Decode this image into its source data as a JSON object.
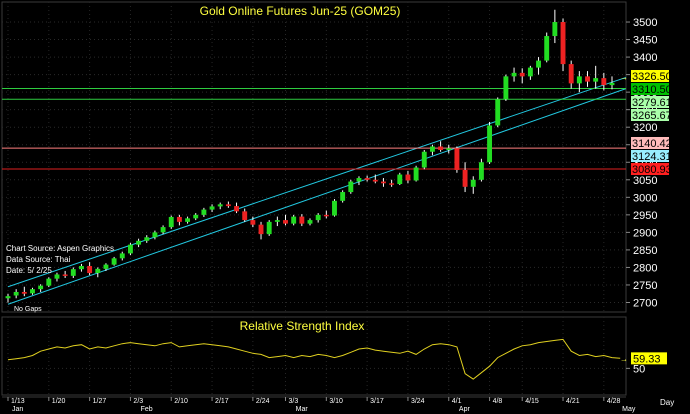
{
  "chart_data": [
    {
      "type": "candlestick",
      "title": "Gold Online Futures Jun-25 (GOM25)",
      "notes": [
        "Chart Source: Aspen Graphics",
        "Data Source: Thai",
        "Date:   5/ 2/25"
      ],
      "footnote": "No Gaps",
      "ylim": [
        2690,
        3540
      ],
      "yticks": [
        2700,
        2750,
        2800,
        2850,
        2900,
        2950,
        3000,
        3050,
        3100,
        3150,
        3200,
        3250,
        3300,
        3350,
        3400,
        3450,
        3500
      ],
      "x_labels": [
        "1/13",
        "1/20",
        "1/27",
        "2/3",
        "2/10",
        "2/17",
        "2/24",
        "3/3",
        "3/10",
        "3/17",
        "3/24",
        "4/1",
        "4/8",
        "4/15",
        "4/21",
        "4/28"
      ],
      "month_labels": [
        "Jan",
        "Feb",
        "Mar",
        "Apr",
        "May"
      ],
      "right_axis_label": "Day",
      "grid": true,
      "candles": [
        {
          "o": 2712,
          "h": 2725,
          "l": 2700,
          "c": 2718
        },
        {
          "o": 2720,
          "h": 2738,
          "l": 2712,
          "c": 2730
        },
        {
          "o": 2730,
          "h": 2745,
          "l": 2718,
          "c": 2725
        },
        {
          "o": 2726,
          "h": 2742,
          "l": 2722,
          "c": 2738
        },
        {
          "o": 2738,
          "h": 2752,
          "l": 2730,
          "c": 2748
        },
        {
          "o": 2748,
          "h": 2772,
          "l": 2744,
          "c": 2768
        },
        {
          "o": 2768,
          "h": 2785,
          "l": 2760,
          "c": 2780
        },
        {
          "o": 2780,
          "h": 2790,
          "l": 2770,
          "c": 2776
        },
        {
          "o": 2776,
          "h": 2800,
          "l": 2770,
          "c": 2795
        },
        {
          "o": 2795,
          "h": 2810,
          "l": 2788,
          "c": 2804
        },
        {
          "o": 2804,
          "h": 2815,
          "l": 2778,
          "c": 2784
        },
        {
          "o": 2784,
          "h": 2800,
          "l": 2772,
          "c": 2796
        },
        {
          "o": 2796,
          "h": 2812,
          "l": 2790,
          "c": 2808
        },
        {
          "o": 2808,
          "h": 2830,
          "l": 2805,
          "c": 2826
        },
        {
          "o": 2826,
          "h": 2845,
          "l": 2820,
          "c": 2840
        },
        {
          "o": 2840,
          "h": 2870,
          "l": 2835,
          "c": 2865
        },
        {
          "o": 2865,
          "h": 2882,
          "l": 2858,
          "c": 2876
        },
        {
          "o": 2876,
          "h": 2892,
          "l": 2870,
          "c": 2886
        },
        {
          "o": 2886,
          "h": 2905,
          "l": 2880,
          "c": 2900
        },
        {
          "o": 2900,
          "h": 2920,
          "l": 2895,
          "c": 2915
        },
        {
          "o": 2915,
          "h": 2948,
          "l": 2910,
          "c": 2944
        },
        {
          "o": 2944,
          "h": 2950,
          "l": 2920,
          "c": 2930
        },
        {
          "o": 2930,
          "h": 2945,
          "l": 2925,
          "c": 2940
        },
        {
          "o": 2940,
          "h": 2955,
          "l": 2935,
          "c": 2950
        },
        {
          "o": 2950,
          "h": 2970,
          "l": 2944,
          "c": 2965
        },
        {
          "o": 2965,
          "h": 2980,
          "l": 2958,
          "c": 2974
        },
        {
          "o": 2974,
          "h": 2985,
          "l": 2966,
          "c": 2980
        },
        {
          "o": 2980,
          "h": 2988,
          "l": 2970,
          "c": 2975
        },
        {
          "o": 2975,
          "h": 2985,
          "l": 2955,
          "c": 2960
        },
        {
          "o": 2960,
          "h": 2968,
          "l": 2930,
          "c": 2935
        },
        {
          "o": 2935,
          "h": 2945,
          "l": 2915,
          "c": 2922
        },
        {
          "o": 2922,
          "h": 2930,
          "l": 2880,
          "c": 2895
        },
        {
          "o": 2895,
          "h": 2935,
          "l": 2890,
          "c": 2930
        },
        {
          "o": 2930,
          "h": 2945,
          "l": 2918,
          "c": 2935
        },
        {
          "o": 2935,
          "h": 2950,
          "l": 2920,
          "c": 2925
        },
        {
          "o": 2925,
          "h": 2950,
          "l": 2920,
          "c": 2945
        },
        {
          "o": 2945,
          "h": 2952,
          "l": 2918,
          "c": 2925
        },
        {
          "o": 2925,
          "h": 2940,
          "l": 2920,
          "c": 2935
        },
        {
          "o": 2935,
          "h": 2955,
          "l": 2928,
          "c": 2950
        },
        {
          "o": 2950,
          "h": 2962,
          "l": 2940,
          "c": 2948
        },
        {
          "o": 2948,
          "h": 2995,
          "l": 2945,
          "c": 2990
        },
        {
          "o": 2990,
          "h": 3020,
          "l": 2985,
          "c": 3015
        },
        {
          "o": 3015,
          "h": 3050,
          "l": 3010,
          "c": 3045
        },
        {
          "o": 3045,
          "h": 3060,
          "l": 3035,
          "c": 3055
        },
        {
          "o": 3055,
          "h": 3062,
          "l": 3045,
          "c": 3050
        },
        {
          "o": 3050,
          "h": 3065,
          "l": 3040,
          "c": 3045
        },
        {
          "o": 3045,
          "h": 3055,
          "l": 3030,
          "c": 3040
        },
        {
          "o": 3040,
          "h": 3050,
          "l": 3030,
          "c": 3038
        },
        {
          "o": 3038,
          "h": 3070,
          "l": 3035,
          "c": 3065
        },
        {
          "o": 3065,
          "h": 3075,
          "l": 3040,
          "c": 3048
        },
        {
          "o": 3048,
          "h": 3090,
          "l": 3045,
          "c": 3085
        },
        {
          "o": 3085,
          "h": 3135,
          "l": 3080,
          "c": 3130
        },
        {
          "o": 3130,
          "h": 3150,
          "l": 3120,
          "c": 3145
        },
        {
          "o": 3145,
          "h": 3160,
          "l": 3130,
          "c": 3135
        },
        {
          "o": 3135,
          "h": 3150,
          "l": 3125,
          "c": 3140
        },
        {
          "o": 3140,
          "h": 3145,
          "l": 3070,
          "c": 3078
        },
        {
          "o": 3078,
          "h": 3100,
          "l": 3015,
          "c": 3030
        },
        {
          "o": 3030,
          "h": 3060,
          "l": 3010,
          "c": 3050
        },
        {
          "o": 3050,
          "h": 3110,
          "l": 3045,
          "c": 3100
        },
        {
          "o": 3100,
          "h": 3215,
          "l": 3095,
          "c": 3205
        },
        {
          "o": 3205,
          "h": 3285,
          "l": 3200,
          "c": 3280
        },
        {
          "o": 3280,
          "h": 3350,
          "l": 3275,
          "c": 3345
        },
        {
          "o": 3345,
          "h": 3370,
          "l": 3330,
          "c": 3355
        },
        {
          "o": 3355,
          "h": 3368,
          "l": 3325,
          "c": 3345
        },
        {
          "o": 3345,
          "h": 3375,
          "l": 3335,
          "c": 3370
        },
        {
          "o": 3370,
          "h": 3400,
          "l": 3350,
          "c": 3390
        },
        {
          "o": 3390,
          "h": 3470,
          "l": 3385,
          "c": 3460
        },
        {
          "o": 3460,
          "h": 3535,
          "l": 3440,
          "c": 3500
        },
        {
          "o": 3500,
          "h": 3510,
          "l": 3360,
          "c": 3380
        },
        {
          "o": 3380,
          "h": 3390,
          "l": 3310,
          "c": 3325
        },
        {
          "o": 3325,
          "h": 3360,
          "l": 3300,
          "c": 3345
        },
        {
          "o": 3345,
          "h": 3360,
          "l": 3315,
          "c": 3330
        },
        {
          "o": 3330,
          "h": 3375,
          "l": 3310,
          "c": 3340
        },
        {
          "o": 3340,
          "h": 3355,
          "l": 3305,
          "c": 3320
        },
        {
          "o": 3320,
          "h": 3345,
          "l": 3308,
          "c": 3326.5
        }
      ],
      "trendlines": [
        {
          "color": "#22c8e0",
          "from": [
            0,
            2695
          ],
          "to": [
            76,
            3310
          ]
        },
        {
          "color": "#22c8e0",
          "from": [
            0,
            2745
          ],
          "to": [
            76,
            3342
          ]
        }
      ],
      "hlines": [
        {
          "value": 3310.5,
          "color": "#2ecc40"
        },
        {
          "value": 3279.61,
          "color": "#2ecc40"
        },
        {
          "value": 3140.42,
          "color": "#ff8080"
        },
        {
          "value": 3080.93,
          "color": "#e02020"
        }
      ],
      "price_tags": [
        {
          "label": "3326.50",
          "value": 3326.5,
          "bg": "#ffff00",
          "fg": "#000000"
        },
        {
          "label": "3310.50",
          "value": 3310.5,
          "bg": "#00c000",
          "fg": "#000000"
        },
        {
          "label": "3279.61",
          "value": 3279.61,
          "bg": "#aaffaa",
          "fg": "#000000"
        },
        {
          "label": "3265.67",
          "value": 3265.67,
          "bg": "#aaffaa",
          "fg": "#000000"
        },
        {
          "label": "3140.42",
          "value": 3140.42,
          "bg": "#ffbbbb",
          "fg": "#000000"
        },
        {
          "label": "3124.31",
          "value": 3124.31,
          "bg": "#99eeff",
          "fg": "#000000"
        },
        {
          "label": "3080.93",
          "value": 3080.93,
          "bg": "#ff2020",
          "fg": "#000000"
        }
      ]
    },
    {
      "type": "line",
      "title": "Relative Strength Index",
      "ylim": [
        28,
        82
      ],
      "yticks": [
        50
      ],
      "last_value_label": "59.33",
      "grid": true,
      "series": [
        {
          "color": "#e0d020",
          "values": [
            58,
            59,
            60,
            62,
            66,
            68,
            70,
            69,
            71,
            72,
            68,
            70,
            69,
            71,
            73,
            74,
            73,
            72,
            71,
            73,
            74,
            70,
            71,
            72,
            73,
            72,
            71,
            70,
            68,
            66,
            64,
            63,
            60,
            61,
            62,
            60,
            62,
            61,
            63,
            62,
            60,
            62,
            65,
            68,
            69,
            67,
            66,
            65,
            64,
            66,
            63,
            68,
            72,
            73,
            72,
            70,
            45,
            40,
            46,
            52,
            60,
            64,
            68,
            71,
            72,
            74,
            75,
            76,
            77,
            66,
            62,
            63,
            61,
            62,
            60,
            59.33
          ]
        }
      ]
    }
  ]
}
